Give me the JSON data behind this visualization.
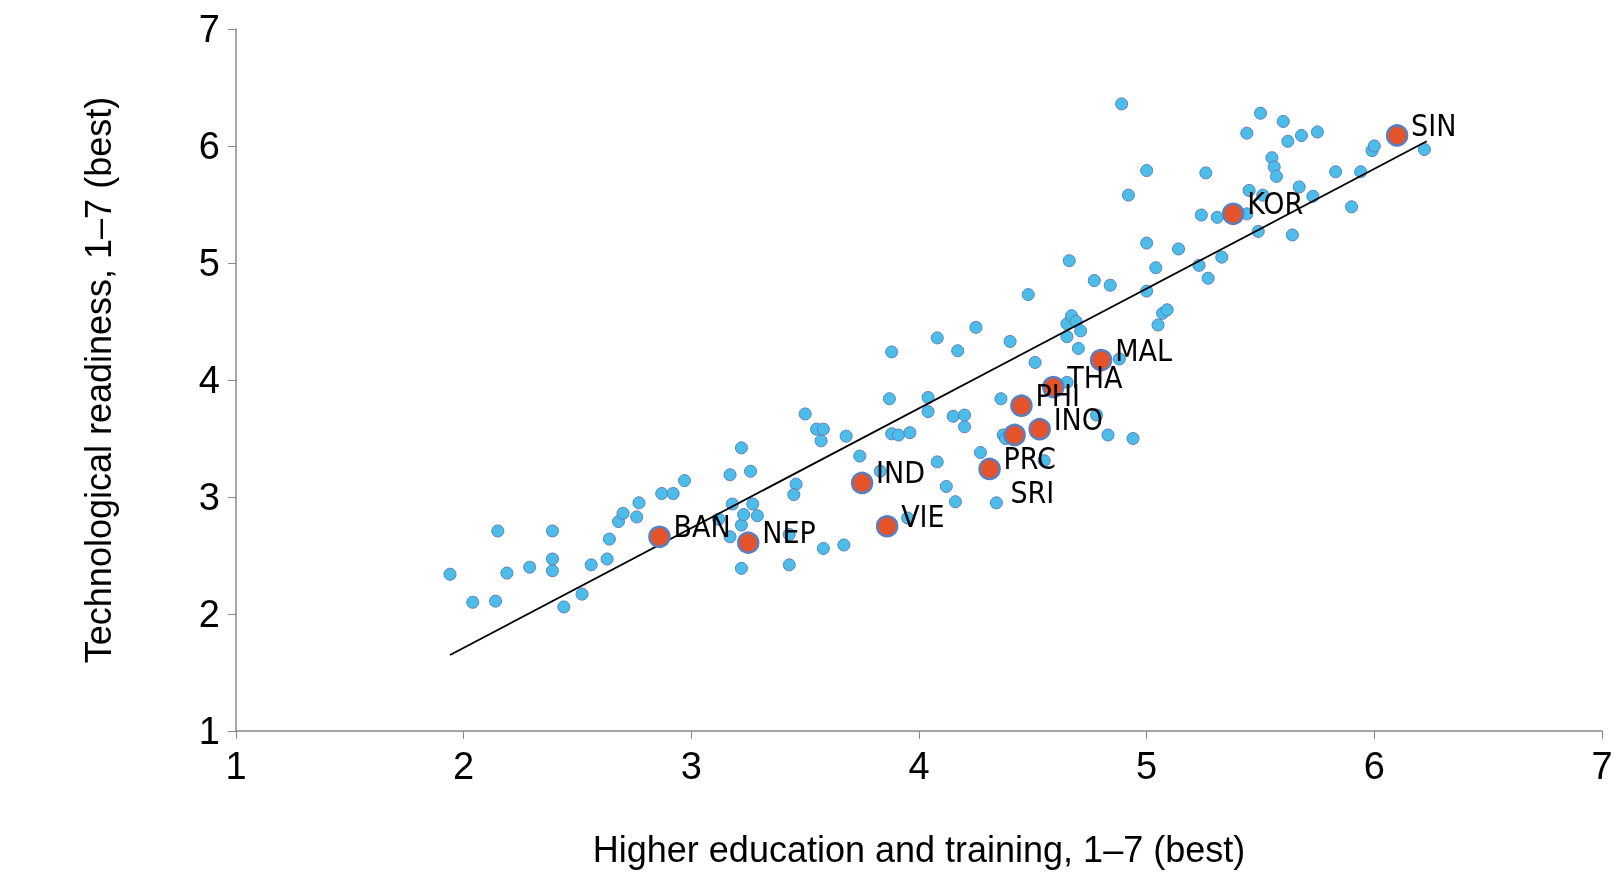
{
  "chart_data": {
    "type": "scatter",
    "xlabel": "Higher education and training, 1–7 (best)",
    "ylabel": "Technological readiness, 1–7 (best)",
    "xlim": [
      1,
      7
    ],
    "xticks": [
      1,
      2,
      3,
      4,
      5,
      6,
      7
    ],
    "ylim": [
      1,
      7
    ],
    "yticks": [
      1,
      2,
      3,
      4,
      5,
      6,
      7
    ],
    "grid": false,
    "marker": "circle",
    "series": [
      {
        "color": "#4cbde9",
        "x": [
          1.94,
          2.04,
          2.14,
          2.15,
          2.19,
          2.29,
          2.39,
          2.39,
          2.44,
          2.39,
          2.52,
          2.56,
          2.63,
          2.64,
          2.68,
          2.7,
          2.76,
          2.77,
          2.87,
          2.92,
          2.97,
          3.12,
          3.17,
          3.18,
          3.17,
          3.22,
          3.26,
          3.22,
          3.23,
          3.27,
          3.29,
          3.22,
          3.43,
          3.43,
          3.46,
          3.45,
          3.5,
          3.55,
          3.58,
          3.57,
          3.58,
          3.68,
          3.67,
          3.74,
          3.83,
          3.88,
          3.91,
          3.87,
          3.88,
          3.95,
          3.96,
          4.08,
          4.04,
          4.04,
          4.08,
          4.12,
          4.15,
          4.16,
          4.17,
          4.2,
          4.2,
          4.25,
          4.27,
          4.36,
          4.37,
          4.38,
          4.4,
          4.51,
          4.55,
          4.65,
          4.67,
          4.65,
          4.69,
          4.71,
          4.7,
          4.65,
          4.78,
          4.77,
          4.84,
          4.88,
          4.83,
          4.94,
          4.66,
          4.48,
          4.89,
          4.92,
          5.0,
          5.0,
          5.0,
          5.04,
          5.05,
          5.07,
          5.09,
          5.14,
          5.23,
          5.24,
          5.26,
          5.27,
          5.31,
          5.33,
          5.44,
          5.44,
          5.45,
          5.49,
          5.5,
          5.51,
          5.55,
          5.56,
          5.57,
          5.6,
          5.62,
          5.64,
          5.67,
          5.68,
          5.73,
          5.75,
          5.83,
          5.9,
          5.94,
          5.99,
          6.0,
          6.22,
          4.34
        ],
        "values": [
          2.34,
          2.1,
          2.11,
          2.71,
          2.35,
          2.4,
          2.71,
          2.37,
          2.06,
          2.47,
          2.17,
          2.42,
          2.47,
          2.64,
          2.79,
          2.86,
          2.83,
          2.95,
          3.03,
          3.03,
          3.14,
          2.81,
          3.19,
          2.94,
          2.66,
          3.42,
          3.22,
          2.76,
          2.85,
          2.94,
          2.84,
          2.39,
          2.68,
          2.42,
          3.11,
          3.02,
          3.71,
          3.58,
          3.58,
          3.48,
          2.56,
          3.52,
          2.59,
          3.35,
          3.22,
          3.54,
          3.53,
          3.84,
          4.24,
          2.82,
          3.55,
          4.36,
          3.85,
          3.73,
          3.3,
          3.09,
          3.69,
          2.96,
          4.25,
          3.6,
          3.7,
          4.45,
          3.38,
          3.84,
          3.53,
          3.5,
          4.33,
          4.15,
          3.31,
          4.48,
          4.55,
          4.37,
          4.5,
          4.42,
          4.27,
          3.98,
          3.7,
          4.85,
          4.81,
          4.18,
          3.53,
          3.5,
          5.02,
          4.73,
          6.36,
          5.58,
          5.17,
          5.79,
          4.76,
          4.96,
          4.47,
          4.57,
          4.6,
          5.12,
          4.98,
          5.41,
          5.77,
          4.87,
          5.39,
          5.05,
          5.42,
          6.11,
          5.62,
          5.27,
          6.28,
          5.58,
          5.9,
          5.82,
          5.74,
          6.21,
          6.04,
          5.24,
          5.65,
          6.09,
          5.57,
          6.12,
          5.78,
          5.48,
          5.78,
          5.96,
          6.0,
          5.97,
          2.95
        ]
      },
      {
        "color": "#e5532b",
        "x": [
          2.86,
          3.25,
          3.75,
          3.86,
          4.31,
          4.45,
          4.42,
          4.53,
          4.59,
          4.8,
          5.38,
          6.1
        ],
        "values": [
          2.66,
          2.61,
          3.12,
          2.75,
          3.24,
          3.78,
          3.53,
          3.58,
          3.94,
          4.17,
          5.42,
          6.09
        ]
      },
      {
        "type": "line",
        "color": "#000000",
        "marker": "none",
        "x": [
          1.94,
          6.23
        ],
        "values": [
          1.65,
          6.04
        ]
      }
    ],
    "annotations": [
      {
        "text": "BAN",
        "x": 2.86,
        "y": 2.66
      },
      {
        "text": "NEP",
        "x": 3.25,
        "y": 2.61
      },
      {
        "text": "IND",
        "x": 3.75,
        "y": 3.12
      },
      {
        "text": "VIE",
        "x": 3.86,
        "y": 2.75
      },
      {
        "text": "PRC",
        "x": 4.31,
        "y": 3.24
      },
      {
        "text": "SRI",
        "x": 4.34,
        "y": 2.95
      },
      {
        "text": "PHI",
        "x": 4.45,
        "y": 3.78
      },
      {
        "text": "INO",
        "x": 4.53,
        "y": 3.58
      },
      {
        "text": "THA",
        "x": 4.59,
        "y": 3.94
      },
      {
        "text": "MAL",
        "x": 4.8,
        "y": 4.17
      },
      {
        "text": "KOR",
        "x": 5.38,
        "y": 5.42
      },
      {
        "text": "SIN",
        "x": 6.1,
        "y": 6.09
      }
    ]
  }
}
